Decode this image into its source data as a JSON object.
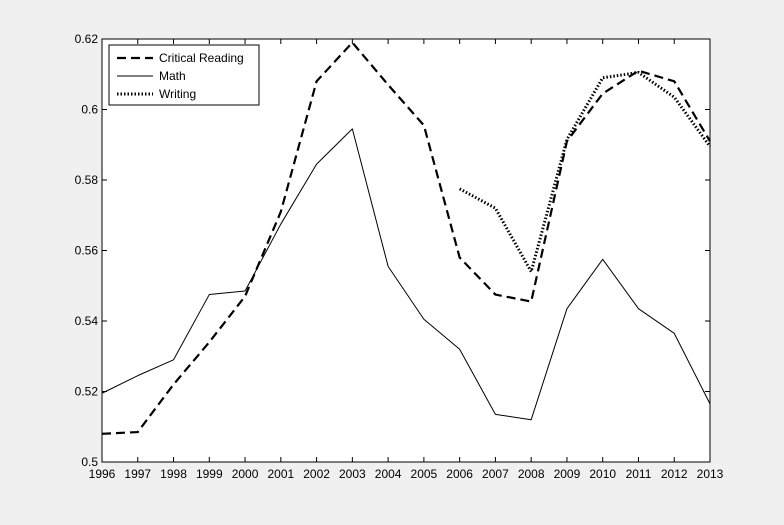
{
  "chart_data": {
    "type": "line",
    "title": "",
    "xlabel": "",
    "ylabel": "",
    "xlim": [
      1996,
      2013
    ],
    "ylim": [
      0.5,
      0.62
    ],
    "x_ticks": [
      "1996",
      "1997",
      "1998",
      "1999",
      "2000",
      "2001",
      "2002",
      "2003",
      "2004",
      "2005",
      "2006",
      "2007",
      "2008",
      "2009",
      "2010",
      "2011",
      "2012",
      "2013"
    ],
    "y_ticks": [
      "0.5",
      "0.52",
      "0.54",
      "0.56",
      "0.58",
      "0.6",
      "0.62"
    ],
    "grid": false,
    "legend_position": "top-left",
    "series": [
      {
        "name": "Critical Reading",
        "style": "dashed",
        "color": "#000000",
        "x": [
          1996,
          1997,
          1998,
          1999,
          2000,
          2001,
          2002,
          2003,
          2004,
          2005,
          2006,
          2007,
          2008,
          2009,
          2010,
          2011,
          2012,
          2013
        ],
        "values": [
          0.508,
          0.5085,
          0.522,
          0.534,
          0.547,
          0.571,
          0.608,
          0.619,
          0.607,
          0.5955,
          0.558,
          0.5475,
          0.5455,
          0.591,
          0.6045,
          0.611,
          0.608,
          0.591
        ]
      },
      {
        "name": "Math",
        "style": "solid",
        "color": "#000000",
        "x": [
          1996,
          1997,
          1998,
          1999,
          2000,
          2001,
          2002,
          2003,
          2004,
          2005,
          2006,
          2007,
          2008,
          2009,
          2010,
          2011,
          2012,
          2013
        ],
        "values": [
          0.5195,
          0.5245,
          0.529,
          0.5475,
          0.5485,
          0.5675,
          0.5845,
          0.5945,
          0.5555,
          0.5405,
          0.532,
          0.5135,
          0.512,
          0.5435,
          0.5575,
          0.5435,
          0.5365,
          0.5165
        ]
      },
      {
        "name": "Writing",
        "style": "dotted",
        "color": "#000000",
        "x": [
          2006,
          2007,
          2008,
          2009,
          2010,
          2011,
          2012,
          2013
        ],
        "values": [
          0.5775,
          0.572,
          0.554,
          0.5915,
          0.609,
          0.6105,
          0.6035,
          0.5895
        ]
      }
    ]
  }
}
